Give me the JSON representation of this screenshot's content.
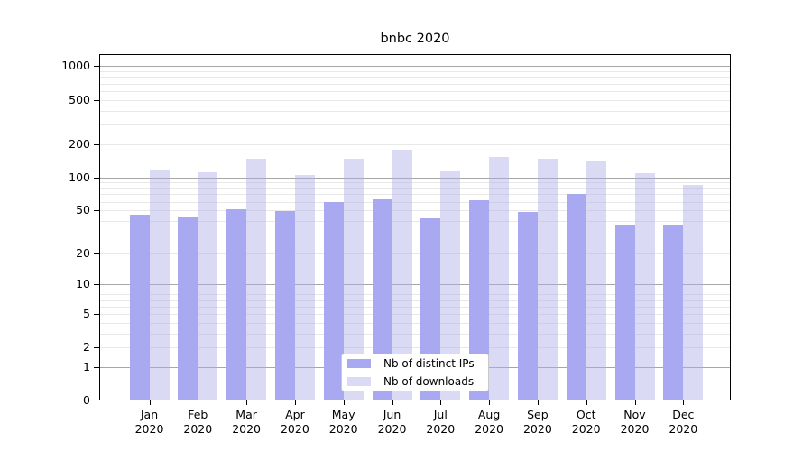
{
  "chart_data": {
    "type": "bar",
    "title": "bnbc 2020",
    "categories": [
      "Jan",
      "Feb",
      "Mar",
      "Apr",
      "May",
      "Jun",
      "Jul",
      "Aug",
      "Sep",
      "Oct",
      "Nov",
      "Dec"
    ],
    "year": "2020",
    "series": [
      {
        "name": "Nb of distinct IPs",
        "color": "#a9a9f1",
        "values": [
          46,
          43,
          51,
          49,
          60,
          63,
          42,
          62,
          48,
          70,
          37,
          37
        ]
      },
      {
        "name": "Nb of downloads",
        "color": "#dadaf5",
        "values": [
          116,
          110,
          147,
          105,
          148,
          177,
          114,
          152,
          146,
          141,
          109,
          85
        ]
      }
    ],
    "y_ticks": [
      0,
      1,
      2,
      5,
      10,
      20,
      50,
      100,
      200,
      500,
      1000
    ],
    "y_scale": "log10(1+v)",
    "ylim": [
      0,
      1280
    ],
    "xlabel": "",
    "ylabel": "",
    "grid": true,
    "legend_position": "bottom-center"
  }
}
